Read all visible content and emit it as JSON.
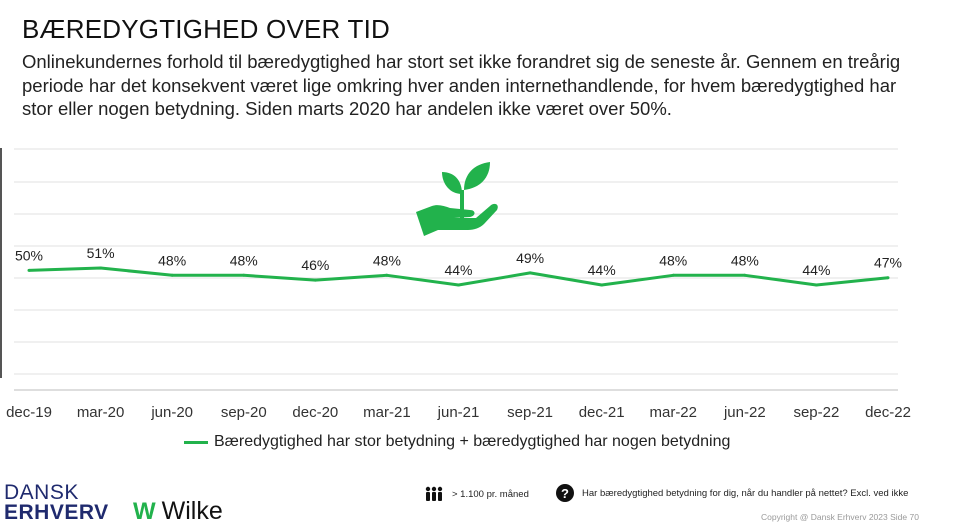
{
  "header": {
    "title": "BÆREDYGTIGHED OVER TID",
    "subtitle": "Onlinekundernes forhold til bæredygtighed har stort set ikke forandret sig de seneste år. Gennem en treårig periode har det konsekvent været lige omkring hver anden internethandlende, for hvem bæredygtighed har stor eller nogen betydning. Siden marts 2020 har andelen ikke været over 50%."
  },
  "chart_data": {
    "type": "line",
    "categories": [
      "dec-19",
      "mar-20",
      "jun-20",
      "sep-20",
      "dec-20",
      "mar-21",
      "jun-21",
      "sep-21",
      "dec-21",
      "mar-22",
      "jun-22",
      "sep-22",
      "dec-22"
    ],
    "series": [
      {
        "name": "Bæredygtighed har stor betydning + bæredygtighed har nogen betydning",
        "values": [
          50,
          51,
          48,
          48,
          46,
          48,
          44,
          49,
          44,
          48,
          48,
          44,
          47
        ],
        "labels": [
          "50%",
          "51%",
          "48%",
          "48%",
          "46%",
          "48%",
          "44%",
          "49%",
          "44%",
          "48%",
          "48%",
          "44%",
          "47%"
        ],
        "color": "#22b24c"
      }
    ],
    "title": "BÆREDYGTIGHED OVER TID",
    "xlabel": "",
    "ylabel": "",
    "ylim": [
      0,
      100
    ],
    "grid": true,
    "legend": "bottom",
    "icon": "plant-in-hand-icon"
  },
  "legend": {
    "label": "Bæredygtighed har stor betydning + bæredygtighed har nogen betydning"
  },
  "footer": {
    "brand_line1": "DANSK",
    "brand_line2": "ERHVERV",
    "wilke_mark": "W",
    "wilke_name": "Wilke",
    "sample_icon": "people-icon",
    "sample_text": "> 1.100 pr. måned",
    "question_icon": "question-icon",
    "question_glyph": "?",
    "question_text": "Har bæredygtighed betydning for dig, når du handler på nettet? Excl. ved ikke",
    "copyright": "Copyright @ Dansk Erhverv 2023  Side  70"
  },
  "colors": {
    "accent": "#22b24c",
    "grid": "#e2e2e2",
    "brand_blue": "#1f2a6e"
  }
}
